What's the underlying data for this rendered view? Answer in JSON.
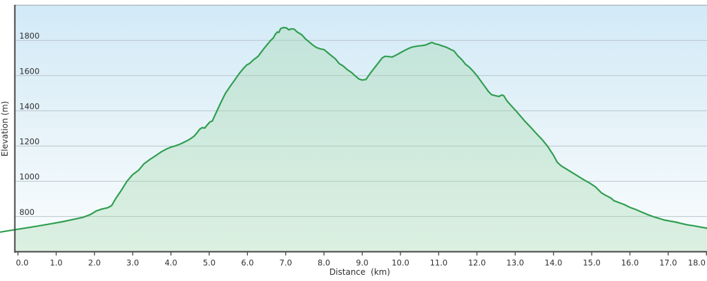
{
  "chart_data": {
    "type": "area",
    "title": "",
    "xlabel": "Distance  (km)",
    "ylabel": "Elevation (m)",
    "x_ticks": [
      {
        "value": 0,
        "label": "0.0"
      },
      {
        "value": 1,
        "label": "1.0"
      },
      {
        "value": 2,
        "label": "2.0"
      },
      {
        "value": 3,
        "label": "3.0"
      },
      {
        "value": 4,
        "label": "4.0"
      },
      {
        "value": 5,
        "label": "5.0"
      },
      {
        "value": 6,
        "label": "6.0"
      },
      {
        "value": 7,
        "label": "7.0"
      },
      {
        "value": 8,
        "label": "8.0"
      },
      {
        "value": 9,
        "label": "9.0"
      },
      {
        "value": 10,
        "label": "10.0"
      },
      {
        "value": 11,
        "label": "11.0"
      },
      {
        "value": 12,
        "label": "12.0"
      },
      {
        "value": 13,
        "label": "13.0"
      },
      {
        "value": 14,
        "label": "14.0"
      },
      {
        "value": 15,
        "label": "15.0"
      },
      {
        "value": 16,
        "label": "16.0"
      },
      {
        "value": 17,
        "label": "17.0"
      },
      {
        "value": 18,
        "label": "18.0"
      }
    ],
    "y_ticks": [
      {
        "value": 800,
        "label": "800"
      },
      {
        "value": 1000,
        "label": "1000"
      },
      {
        "value": 1200,
        "label": "1200"
      },
      {
        "value": 1400,
        "label": "1400"
      },
      {
        "value": 1600,
        "label": "1600"
      },
      {
        "value": 1800,
        "label": "1800"
      }
    ],
    "xlim": [
      0,
      18
    ],
    "ylim": [
      600,
      2000
    ],
    "grid": "horizontal",
    "legend": "none",
    "series": [
      {
        "name": "elevation-profile",
        "points": [
          [
            -0.46,
            712
          ],
          [
            0,
            728
          ],
          [
            0.3,
            738
          ],
          [
            0.6,
            749
          ],
          [
            0.9,
            760
          ],
          [
            1.2,
            772
          ],
          [
            1.5,
            786
          ],
          [
            1.7,
            795
          ],
          [
            1.9,
            812
          ],
          [
            2.05,
            832
          ],
          [
            2.2,
            843
          ],
          [
            2.35,
            850
          ],
          [
            2.45,
            862
          ],
          [
            2.55,
            900
          ],
          [
            2.7,
            948
          ],
          [
            2.85,
            1000
          ],
          [
            3.0,
            1038
          ],
          [
            3.15,
            1062
          ],
          [
            3.3,
            1100
          ],
          [
            3.45,
            1124
          ],
          [
            3.6,
            1145
          ],
          [
            3.75,
            1168
          ],
          [
            3.9,
            1185
          ],
          [
            4.0,
            1194
          ],
          [
            4.1,
            1200
          ],
          [
            4.25,
            1212
          ],
          [
            4.4,
            1228
          ],
          [
            4.5,
            1240
          ],
          [
            4.6,
            1255
          ],
          [
            4.68,
            1275
          ],
          [
            4.75,
            1295
          ],
          [
            4.82,
            1305
          ],
          [
            4.88,
            1302
          ],
          [
            4.95,
            1320
          ],
          [
            5.02,
            1337
          ],
          [
            5.08,
            1342
          ],
          [
            5.2,
            1398
          ],
          [
            5.3,
            1445
          ],
          [
            5.42,
            1498
          ],
          [
            5.55,
            1540
          ],
          [
            5.65,
            1570
          ],
          [
            5.78,
            1610
          ],
          [
            5.9,
            1642
          ],
          [
            5.98,
            1660
          ],
          [
            6.05,
            1668
          ],
          [
            6.15,
            1688
          ],
          [
            6.28,
            1710
          ],
          [
            6.4,
            1745
          ],
          [
            6.5,
            1772
          ],
          [
            6.6,
            1798
          ],
          [
            6.68,
            1815
          ],
          [
            6.72,
            1832
          ],
          [
            6.78,
            1848
          ],
          [
            6.82,
            1845
          ],
          [
            6.87,
            1868
          ],
          [
            6.95,
            1873
          ],
          [
            7.02,
            1871
          ],
          [
            7.08,
            1860
          ],
          [
            7.15,
            1866
          ],
          [
            7.22,
            1864
          ],
          [
            7.3,
            1848
          ],
          [
            7.42,
            1832
          ],
          [
            7.52,
            1808
          ],
          [
            7.62,
            1790
          ],
          [
            7.7,
            1775
          ],
          [
            7.8,
            1760
          ],
          [
            7.9,
            1752
          ],
          [
            8.0,
            1748
          ],
          [
            8.1,
            1730
          ],
          [
            8.2,
            1712
          ],
          [
            8.3,
            1695
          ],
          [
            8.4,
            1668
          ],
          [
            8.5,
            1655
          ],
          [
            8.62,
            1632
          ],
          [
            8.72,
            1618
          ],
          [
            8.82,
            1598
          ],
          [
            8.92,
            1580
          ],
          [
            9.0,
            1575
          ],
          [
            9.1,
            1578
          ],
          [
            9.2,
            1610
          ],
          [
            9.3,
            1638
          ],
          [
            9.42,
            1672
          ],
          [
            9.52,
            1700
          ],
          [
            9.6,
            1710
          ],
          [
            9.7,
            1708
          ],
          [
            9.78,
            1705
          ],
          [
            9.9,
            1718
          ],
          [
            10.0,
            1730
          ],
          [
            10.1,
            1742
          ],
          [
            10.2,
            1753
          ],
          [
            10.3,
            1762
          ],
          [
            10.45,
            1768
          ],
          [
            10.55,
            1770
          ],
          [
            10.65,
            1773
          ],
          [
            10.75,
            1782
          ],
          [
            10.82,
            1789
          ],
          [
            10.9,
            1781
          ],
          [
            11.0,
            1776
          ],
          [
            11.1,
            1768
          ],
          [
            11.2,
            1761
          ],
          [
            11.3,
            1750
          ],
          [
            11.4,
            1740
          ],
          [
            11.5,
            1712
          ],
          [
            11.6,
            1692
          ],
          [
            11.7,
            1665
          ],
          [
            11.8,
            1648
          ],
          [
            11.9,
            1625
          ],
          [
            12.0,
            1600
          ],
          [
            12.1,
            1570
          ],
          [
            12.2,
            1540
          ],
          [
            12.3,
            1510
          ],
          [
            12.38,
            1492
          ],
          [
            12.5,
            1485
          ],
          [
            12.58,
            1482
          ],
          [
            12.65,
            1490
          ],
          [
            12.7,
            1486
          ],
          [
            12.78,
            1458
          ],
          [
            12.9,
            1428
          ],
          [
            13.0,
            1405
          ],
          [
            13.1,
            1380
          ],
          [
            13.25,
            1342
          ],
          [
            13.4,
            1308
          ],
          [
            13.55,
            1272
          ],
          [
            13.7,
            1238
          ],
          [
            13.85,
            1198
          ],
          [
            14.0,
            1148
          ],
          [
            14.1,
            1108
          ],
          [
            14.2,
            1088
          ],
          [
            14.35,
            1068
          ],
          [
            14.5,
            1048
          ],
          [
            14.65,
            1028
          ],
          [
            14.8,
            1008
          ],
          [
            14.95,
            990
          ],
          [
            15.1,
            968
          ],
          [
            15.25,
            935
          ],
          [
            15.35,
            922
          ],
          [
            15.5,
            905
          ],
          [
            15.58,
            890
          ],
          [
            15.7,
            880
          ],
          [
            15.85,
            868
          ],
          [
            16.0,
            852
          ],
          [
            16.15,
            840
          ],
          [
            16.3,
            826
          ],
          [
            16.45,
            812
          ],
          [
            16.6,
            800
          ],
          [
            16.75,
            790
          ],
          [
            16.9,
            780
          ],
          [
            17.05,
            774
          ],
          [
            17.2,
            768
          ],
          [
            17.35,
            760
          ],
          [
            17.5,
            753
          ],
          [
            17.65,
            748
          ],
          [
            17.8,
            742
          ],
          [
            17.95,
            736
          ],
          [
            18.05,
            732
          ]
        ]
      }
    ]
  },
  "colors": {
    "line_green": "#2f9e50",
    "area_fill": "rgba(160,215,170,0.35)",
    "plot_bg_top": "#d2eaf7",
    "plot_bg_mid1": "#e3f1f8",
    "plot_bg_mid2": "#f2f9fc",
    "plot_bg_bottom": "#fbfdfe",
    "gridline": "#b8c4cb",
    "top_border": "#a6b4bc",
    "axis": "#444444",
    "text": "#2f2f2f"
  }
}
